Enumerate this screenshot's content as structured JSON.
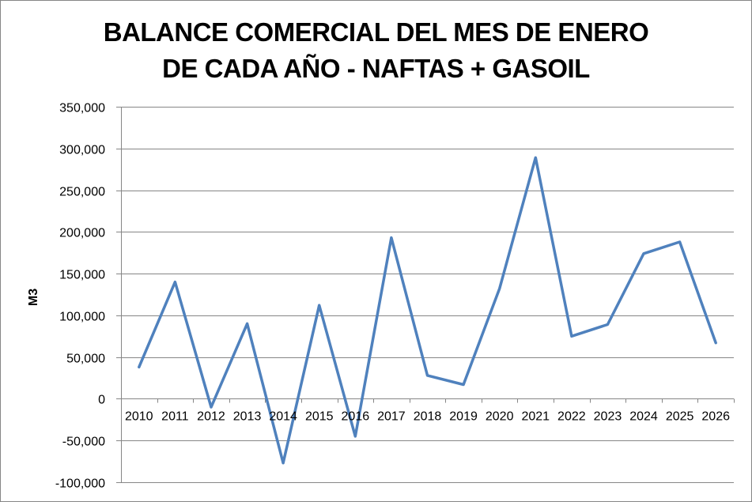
{
  "chart_data": {
    "type": "line",
    "title_lines": [
      "BALANCE COMERCIAL DEL MES DE ENERO",
      "DE CADA AÑO - NAFTAS + GASOIL"
    ],
    "xlabel": "",
    "ylabel": "M3",
    "categories": [
      "2010",
      "2011",
      "2012",
      "2013",
      "2014",
      "2015",
      "2016",
      "2017",
      "2018",
      "2019",
      "2020",
      "2021",
      "2022",
      "2023",
      "2024",
      "2025",
      "2026"
    ],
    "series": [
      {
        "values": [
          38000,
          140000,
          -10000,
          90000,
          -77000,
          112000,
          -45000,
          193000,
          28000,
          17000,
          132000,
          289000,
          75000,
          89000,
          174000,
          188000,
          67000
        ],
        "color": "#4f81bd"
      }
    ],
    "ylim": [
      -100000,
      350000
    ],
    "y_ticks": [
      -100000,
      -50000,
      0,
      50000,
      100000,
      150000,
      200000,
      250000,
      300000,
      350000
    ],
    "y_tick_labels": [
      "-100,000",
      "-50,000",
      "0",
      "50,000",
      "100,000",
      "150,000",
      "200,000",
      "250,000",
      "300,000",
      "350,000"
    ],
    "grid": true,
    "legend": "none",
    "gridline_color": "#868686"
  }
}
